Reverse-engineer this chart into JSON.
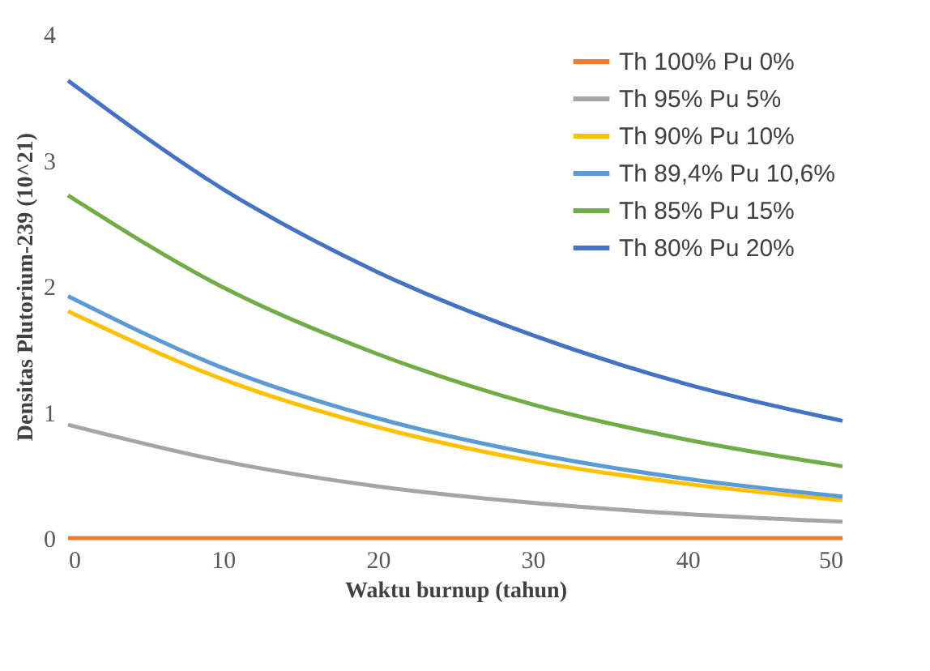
{
  "chart_data": {
    "type": "line",
    "xlabel": "Waktu burnup  (tahun)",
    "ylabel": "Densitas Plutorium-239  (10^21)",
    "x": [
      0,
      10,
      20,
      30,
      40,
      50
    ],
    "series": [
      {
        "name": "Th 100% Pu 0%",
        "color": "#ed7d31",
        "values": [
          0,
          0,
          0,
          0,
          0,
          0
        ]
      },
      {
        "name": "Th 95% Pu 5%",
        "color": "#a5a5a5",
        "values": [
          0.9,
          0.61,
          0.41,
          0.28,
          0.19,
          0.13
        ]
      },
      {
        "name": "Th 90% Pu 10%",
        "color": "#ffc000",
        "values": [
          1.8,
          1.26,
          0.88,
          0.61,
          0.43,
          0.3
        ]
      },
      {
        "name": "Th 89,4% Pu 10,6%",
        "color": "#5b9bd5",
        "values": [
          1.92,
          1.35,
          0.95,
          0.67,
          0.47,
          0.33
        ]
      },
      {
        "name": "Th 85% Pu 15%",
        "color": "#70ad47",
        "values": [
          2.72,
          1.99,
          1.46,
          1.06,
          0.78,
          0.57
        ]
      },
      {
        "name": "Th 80% Pu 20%",
        "color": "#4472c4",
        "values": [
          3.63,
          2.77,
          2.11,
          1.61,
          1.22,
          0.93
        ]
      }
    ],
    "xlim": [
      0,
      50
    ],
    "xticks": [
      0,
      10,
      20,
      30,
      40,
      50
    ],
    "ylim": [
      0,
      4
    ],
    "yticks": [
      0,
      1,
      2,
      3,
      4
    ],
    "grid": false,
    "legend": "top right",
    "marker": "none",
    "line_style": "solid"
  }
}
